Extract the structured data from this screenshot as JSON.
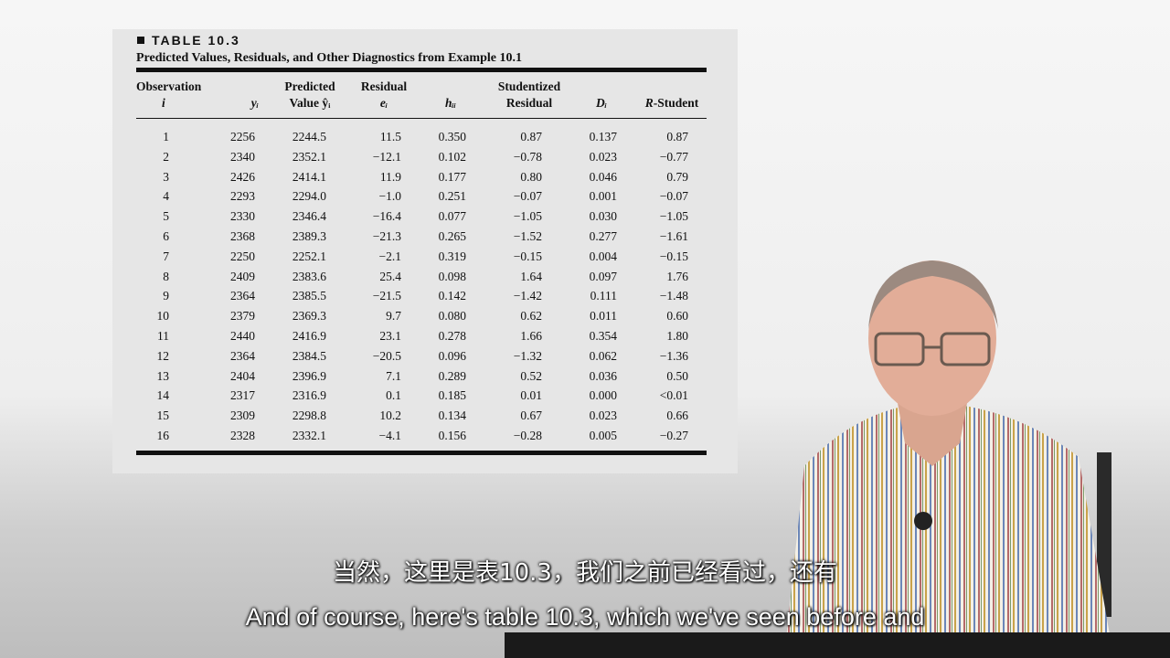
{
  "table": {
    "title": "TABLE 10.3",
    "caption": "Predicted Values, Residuals, and Other Diagnostics from Example 10.1",
    "headers": {
      "observation": {
        "line1": "Observation",
        "line2": "i"
      },
      "y": {
        "line1": "",
        "line2": "yᵢ"
      },
      "predicted": {
        "line1": "Predicted",
        "line2": "Value ŷᵢ"
      },
      "residual": {
        "line1": "Residual",
        "line2": "eᵢ"
      },
      "hii": {
        "line1": "",
        "line2": "hᵢᵢ"
      },
      "studentized": {
        "line1": "Studentized",
        "line2": "Residual"
      },
      "d": {
        "line1": "",
        "line2": "Dᵢ"
      },
      "rstudent": {
        "line1": "",
        "line2": "R-Student"
      }
    },
    "rows": [
      [
        "1",
        "2256",
        "2244.5",
        "11.5",
        "0.350",
        "0.87",
        "0.137",
        "0.87"
      ],
      [
        "2",
        "2340",
        "2352.1",
        "−12.1",
        "0.102",
        "−0.78",
        "0.023",
        "−0.77"
      ],
      [
        "3",
        "2426",
        "2414.1",
        "11.9",
        "0.177",
        "0.80",
        "0.046",
        "0.79"
      ],
      [
        "4",
        "2293",
        "2294.0",
        "−1.0",
        "0.251",
        "−0.07",
        "0.001",
        "−0.07"
      ],
      [
        "5",
        "2330",
        "2346.4",
        "−16.4",
        "0.077",
        "−1.05",
        "0.030",
        "−1.05"
      ],
      [
        "6",
        "2368",
        "2389.3",
        "−21.3",
        "0.265",
        "−1.52",
        "0.277",
        "−1.61"
      ],
      [
        "7",
        "2250",
        "2252.1",
        "−2.1",
        "0.319",
        "−0.15",
        "0.004",
        "−0.15"
      ],
      [
        "8",
        "2409",
        "2383.6",
        "25.4",
        "0.098",
        "1.64",
        "0.097",
        "1.76"
      ],
      [
        "9",
        "2364",
        "2385.5",
        "−21.5",
        "0.142",
        "−1.42",
        "0.111",
        "−1.48"
      ],
      [
        "10",
        "2379",
        "2369.3",
        "9.7",
        "0.080",
        "0.62",
        "0.011",
        "0.60"
      ],
      [
        "11",
        "2440",
        "2416.9",
        "23.1",
        "0.278",
        "1.66",
        "0.354",
        "1.80"
      ],
      [
        "12",
        "2364",
        "2384.5",
        "−20.5",
        "0.096",
        "−1.32",
        "0.062",
        "−1.36"
      ],
      [
        "13",
        "2404",
        "2396.9",
        "7.1",
        "0.289",
        "0.52",
        "0.036",
        "0.50"
      ],
      [
        "14",
        "2317",
        "2316.9",
        "0.1",
        "0.185",
        "0.01",
        "0.000",
        "<0.01"
      ],
      [
        "15",
        "2309",
        "2298.8",
        "10.2",
        "0.134",
        "0.67",
        "0.023",
        "0.66"
      ],
      [
        "16",
        "2328",
        "2332.1",
        "−4.1",
        "0.156",
        "−0.28",
        "0.005",
        "−0.27"
      ]
    ]
  },
  "subtitles": {
    "chinese": "当然，这里是表10.3，我们之前已经看过，还有",
    "english": "And of course, here's table 10.3, which we've seen before and"
  }
}
